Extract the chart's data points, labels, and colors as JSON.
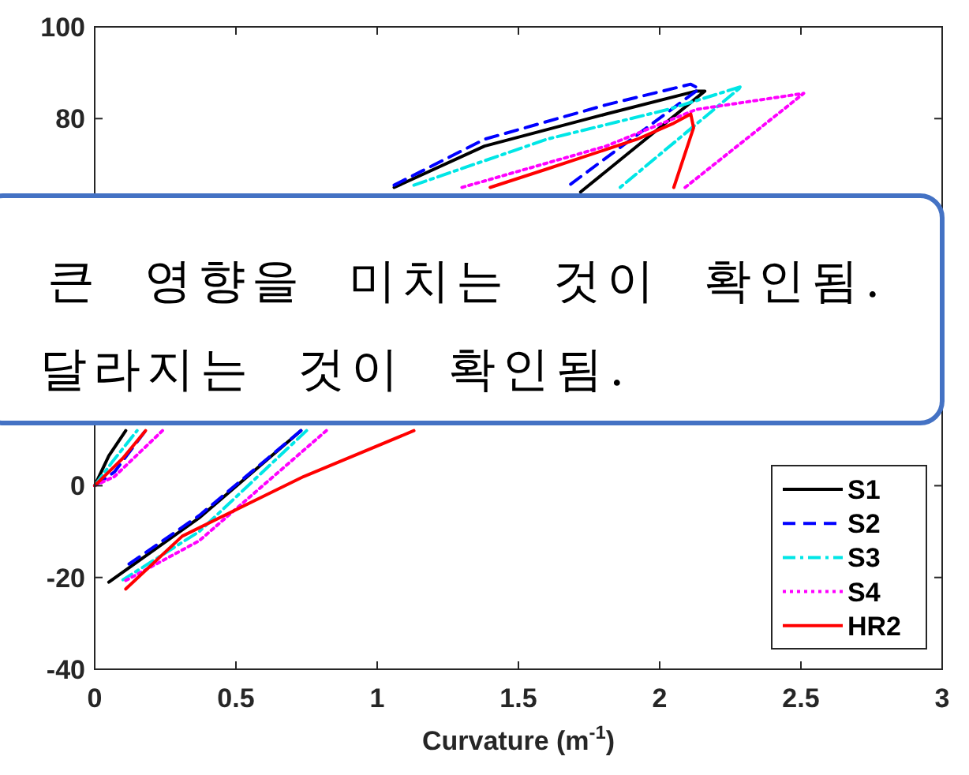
{
  "chart_data": {
    "type": "line",
    "xlabel": "Curvature (m$^{-1}$)",
    "annotations": [
      "큰 영향을 미치는 것이 확인됨.",
      "달라지는 것이 확인됨."
    ],
    "xlim": [
      0,
      3
    ],
    "ylim": [
      -40,
      100
    ],
    "xticks": [
      0,
      0.5,
      1,
      1.5,
      2,
      2.5,
      3
    ],
    "yticks": [
      -40,
      -20,
      0,
      80,
      100
    ],
    "legend": "bottom right",
    "series": [
      {
        "name": "S1",
        "color": "#000000",
        "line_style": "solid",
        "x": [
          0,
          0.05,
          0.11,
          null,
          1.06,
          1.38,
          1.81,
          2.13,
          2.16,
          1.72,
          null,
          0.73,
          0.37,
          0.05
        ],
        "values": [
          0,
          6.5,
          12,
          null,
          65,
          74,
          81,
          86,
          86,
          64,
          null,
          12,
          -7,
          -21
        ]
      },
      {
        "name": "S2",
        "color": "#0000ff",
        "line_style": "dashed",
        "x": [
          0,
          0.07,
          0.18,
          null,
          1.06,
          1.38,
          1.81,
          2.11,
          2.14,
          1.68,
          null,
          0.73,
          0.37,
          0.1
        ],
        "values": [
          0,
          3,
          12,
          null,
          65.5,
          75.5,
          83,
          87.5,
          86.5,
          65.5,
          null,
          12,
          -6.5,
          -18
        ]
      },
      {
        "name": "S3",
        "color": "#00e6e6",
        "line_style": "dashdot",
        "x": [
          0,
          0.06,
          0.15,
          null,
          1.13,
          1.6,
          2.03,
          2.29,
          1.86,
          null,
          0.75,
          0.37,
          0.1
        ],
        "values": [
          0,
          5,
          12,
          null,
          65.5,
          75.5,
          82,
          87,
          65,
          null,
          12,
          -10,
          -20.5
        ]
      },
      {
        "name": "S4",
        "color": "#ff00ff",
        "line_style": "dotted",
        "x": [
          0,
          0.07,
          0.24,
          null,
          1.3,
          1.81,
          2.13,
          2.51,
          2.09,
          null,
          0.82,
          0.37,
          0.1
        ],
        "values": [
          0,
          2,
          12,
          null,
          65,
          74,
          82,
          85.5,
          65,
          null,
          12,
          -12,
          -21
        ]
      },
      {
        "name": "HR2",
        "color": "#ff0000",
        "line_style": "solid",
        "x": [
          0,
          0.1,
          0.18,
          null,
          1.4,
          1.6,
          1.92,
          2.05,
          2.11,
          2.12,
          2.05,
          null,
          1.13,
          0.74,
          0.31,
          0.11
        ],
        "values": [
          0,
          6,
          12,
          null,
          65,
          69,
          75.5,
          79,
          81,
          78,
          65,
          null,
          12,
          2,
          -11,
          -22.5
        ]
      }
    ]
  }
}
